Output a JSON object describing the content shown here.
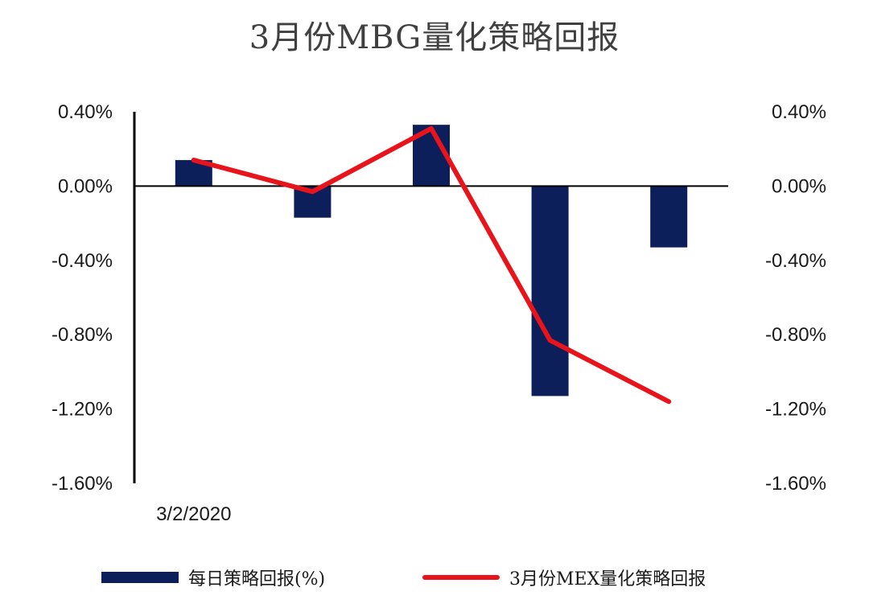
{
  "title": "3月份MBG量化策略回报",
  "colors": {
    "bar": "#0c1f5a",
    "line": "#e8141b",
    "axis": "#000000"
  },
  "chart_data": {
    "type": "bar",
    "title": "3月份MBG量化策略回报",
    "categories": [
      "3/2/2020",
      "",
      "",
      "",
      ""
    ],
    "series": [
      {
        "name": "每日策略回报(%)",
        "type": "bar",
        "axis": "left",
        "values": [
          0.14,
          -0.17,
          0.33,
          -1.13,
          -0.33
        ]
      },
      {
        "name": "3月份MEX量化策略回报",
        "type": "line",
        "axis": "right",
        "values": [
          0.14,
          -0.03,
          0.31,
          -0.83,
          -1.16
        ]
      }
    ],
    "y_left": {
      "ylim": [
        -1.6,
        0.4
      ],
      "ticks": [
        "0.40%",
        "0.00%",
        "-0.40%",
        "-0.80%",
        "-1.20%",
        "-1.60%"
      ]
    },
    "y_right": {
      "ylim": [
        -1.6,
        0.4
      ],
      "ticks": [
        "0.40%",
        "0.00%",
        "-0.40%",
        "-0.80%",
        "-1.20%",
        "-1.60%"
      ]
    },
    "grid": false,
    "legend_position": "bottom"
  },
  "legend": {
    "bar_label": "每日策略回报(%)",
    "line_label": "3月份MEX量化策略回报"
  }
}
